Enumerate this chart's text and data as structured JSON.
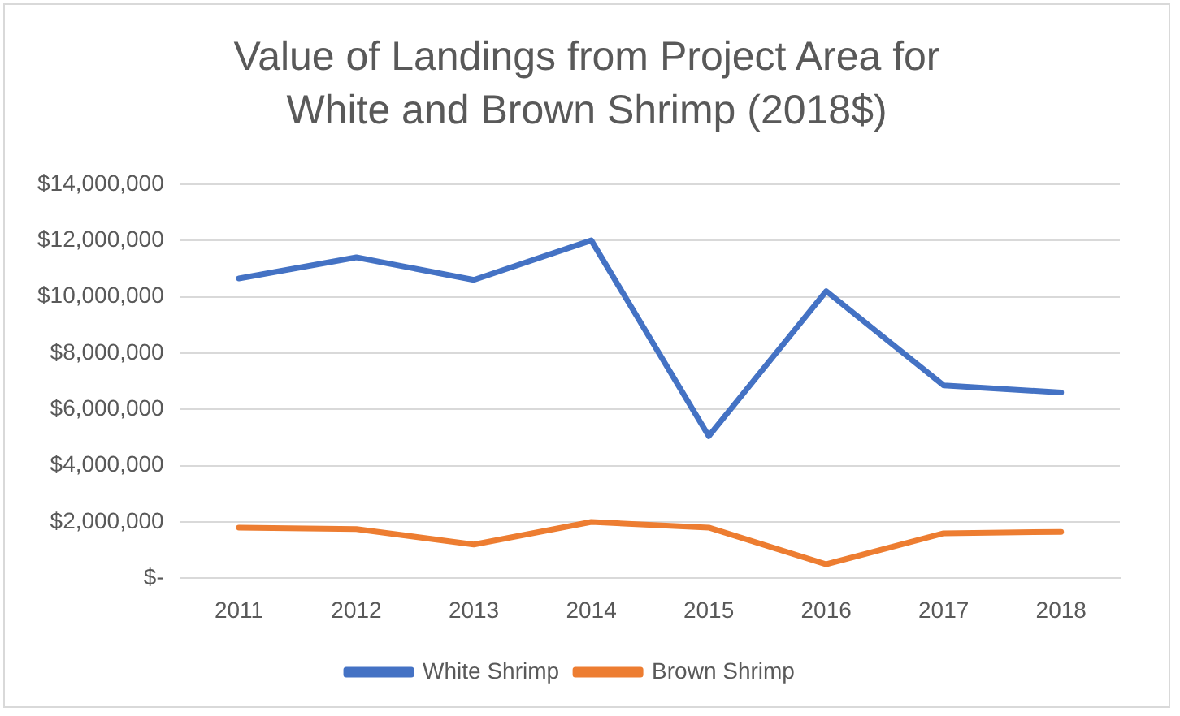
{
  "chart_data": {
    "type": "line",
    "title": "Value of Landings from Project Area for White and Brown Shrimp (2018$)",
    "categories": [
      "2011",
      "2012",
      "2013",
      "2014",
      "2015",
      "2016",
      "2017",
      "2018"
    ],
    "series": [
      {
        "name": "White Shrimp",
        "color": "#4472c4",
        "values": [
          10650000,
          11400000,
          10600000,
          12000000,
          5050000,
          10200000,
          6850000,
          6600000
        ]
      },
      {
        "name": "Brown Shrimp",
        "color": "#ed7d31",
        "values": [
          1800000,
          1750000,
          1200000,
          2000000,
          1800000,
          500000,
          1600000,
          1650000
        ]
      }
    ],
    "ylim": [
      0,
      14000000
    ],
    "yticks": [
      {
        "value": 0,
        "label": "$-"
      },
      {
        "value": 2000000,
        "label": "$2,000,000"
      },
      {
        "value": 4000000,
        "label": "$4,000,000"
      },
      {
        "value": 6000000,
        "label": "$6,000,000"
      },
      {
        "value": 8000000,
        "label": "$8,000,000"
      },
      {
        "value": 10000000,
        "label": "$10,000,000"
      },
      {
        "value": 12000000,
        "label": "$12,000,000"
      },
      {
        "value": 14000000,
        "label": "$14,000,000"
      }
    ],
    "grid": "y",
    "legend": "bottom",
    "marker": "none",
    "line_style": "solid"
  }
}
